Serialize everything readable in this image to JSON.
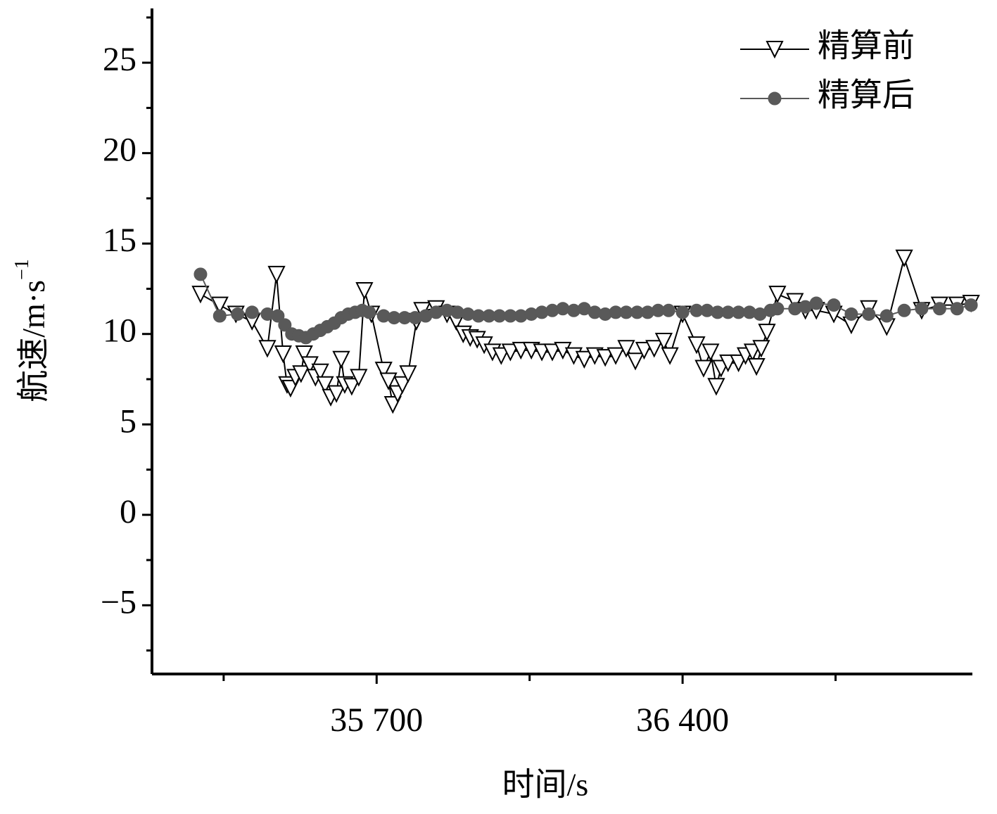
{
  "chart_data": {
    "type": "line",
    "xlabel": "时间/s",
    "ylabel": "航速/m·s",
    "ylabel_sup": "−1",
    "xlim": [
      35186,
      37063
    ],
    "ylim": [
      -8.8,
      28
    ],
    "xticks": [
      {
        "value": 35700,
        "label": "35 700"
      },
      {
        "value": 36400,
        "label": "36 400"
      }
    ],
    "xminor_ticks": [
      35350,
      36050,
      36750
    ],
    "yticks": [
      {
        "value": -5,
        "label": "−5"
      },
      0,
      5,
      10,
      15,
      20,
      25
    ],
    "yminor_ticks": [
      -7.5,
      -2.5,
      2.5,
      7.5,
      12.5,
      17.5,
      22.5,
      27.5
    ],
    "legend": "top-right",
    "series": [
      {
        "name": "精算前",
        "color": "#000000",
        "marker": "triangle-down",
        "x": [
          35297,
          35341,
          35378,
          35415,
          35450,
          35471,
          35486,
          35495,
          35503,
          35514,
          35527,
          35534,
          35547,
          35560,
          35571,
          35582,
          35595,
          35608,
          35619,
          35627,
          35643,
          35659,
          35672,
          35688,
          35716,
          35727,
          35737,
          35748,
          35759,
          35772,
          35791,
          35804,
          35836,
          35861,
          35882,
          35898,
          35914,
          35930,
          35946,
          35965,
          35985,
          36006,
          36030,
          36054,
          36078,
          36102,
          36126,
          36151,
          36175,
          36199,
          36223,
          36247,
          36271,
          36292,
          36312,
          36335,
          36357,
          36371,
          36400,
          36432,
          36448,
          36464,
          36477,
          36488,
          36504,
          36528,
          36544,
          36560,
          36569,
          36580,
          36593,
          36617,
          36657,
          36681,
          36706,
          36746,
          36786,
          36826,
          36867,
          36907,
          36947,
          36988,
          37028,
          37060
        ],
        "values": [
          12.2,
          11.6,
          11.1,
          10.7,
          9.2,
          13.3,
          8.9,
          7.2,
          7.0,
          7.6,
          7.8,
          8.9,
          8.3,
          7.6,
          7.9,
          7.2,
          6.5,
          6.7,
          8.6,
          7.2,
          7.1,
          7.6,
          12.4,
          11.1,
          8.0,
          7.4,
          6.1,
          6.7,
          7.2,
          7.8,
          10.7,
          11.3,
          11.4,
          11.1,
          10.7,
          10.0,
          9.8,
          9.7,
          9.4,
          9.0,
          8.8,
          9.0,
          9.1,
          9.1,
          9.0,
          9.0,
          9.1,
          8.8,
          8.6,
          8.8,
          8.7,
          8.8,
          9.2,
          8.5,
          9.1,
          9.2,
          9.6,
          8.8,
          11.1,
          9.4,
          8.1,
          9.0,
          7.1,
          8.1,
          8.4,
          8.4,
          8.8,
          9.0,
          8.2,
          9.2,
          10.1,
          12.2,
          11.8,
          11.3,
          11.3,
          11.1,
          10.5,
          11.4,
          10.4,
          14.2,
          11.3,
          11.6,
          11.6,
          11.7
        ]
      },
      {
        "name": "精算后",
        "color": "#595959",
        "marker": "circle",
        "x": [
          35297,
          35341,
          35382,
          35415,
          35450,
          35474,
          35490,
          35506,
          35522,
          35538,
          35555,
          35571,
          35587,
          35603,
          35619,
          35635,
          35651,
          35667,
          35683,
          35716,
          35740,
          35764,
          35788,
          35812,
          35836,
          35861,
          35885,
          35909,
          35933,
          35957,
          35981,
          36006,
          36030,
          36054,
          36078,
          36102,
          36126,
          36151,
          36175,
          36199,
          36223,
          36247,
          36271,
          36296,
          36320,
          36344,
          36368,
          36400,
          36432,
          36456,
          36480,
          36504,
          36528,
          36553,
          36577,
          36601,
          36617,
          36657,
          36681,
          36706,
          36746,
          36786,
          36826,
          36867,
          36907,
          36947,
          36988,
          37028,
          37060
        ],
        "values": [
          13.3,
          11.0,
          11.1,
          11.2,
          11.1,
          11.0,
          10.5,
          10.0,
          9.9,
          9.8,
          10.0,
          10.2,
          10.4,
          10.6,
          10.9,
          11.1,
          11.2,
          11.3,
          11.2,
          11.0,
          10.9,
          10.9,
          10.9,
          11.0,
          11.2,
          11.3,
          11.2,
          11.1,
          11.0,
          11.0,
          11.0,
          11.0,
          11.0,
          11.1,
          11.2,
          11.3,
          11.4,
          11.3,
          11.4,
          11.2,
          11.1,
          11.2,
          11.2,
          11.2,
          11.2,
          11.3,
          11.3,
          11.2,
          11.3,
          11.3,
          11.2,
          11.2,
          11.2,
          11.2,
          11.1,
          11.3,
          11.4,
          11.4,
          11.5,
          11.7,
          11.6,
          11.1,
          11.1,
          11.0,
          11.3,
          11.4,
          11.4,
          11.4,
          11.6
        ]
      }
    ]
  }
}
